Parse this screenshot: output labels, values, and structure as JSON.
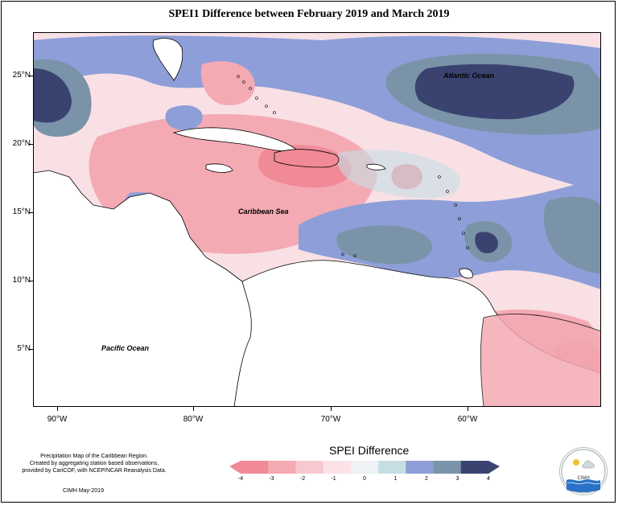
{
  "title": "SPEI1 Difference between February 2019 and March 2019",
  "map": {
    "lat_ticks": [
      "25°N",
      "20°N",
      "15°N",
      "10°N",
      "5°N"
    ],
    "lon_ticks": [
      "90°W",
      "80°W",
      "70°W",
      "60°W"
    ],
    "labels": {
      "atlantic": "Atlantic Ocean",
      "caribbean": "Caribbean Sea",
      "pacific": "Pacific Ocean"
    }
  },
  "legend": {
    "title": "SPEI Difference",
    "ticks": [
      "-4",
      "-3",
      "-2",
      "-1",
      "0",
      "1",
      "2",
      "3",
      "4"
    ],
    "colors": [
      "#f08a96",
      "#f4aab3",
      "#f8c8cf",
      "#fce2e7",
      "#eef2f4",
      "#c6dde4",
      "#8e9ed8",
      "#7a93a8",
      "#3a4370"
    ]
  },
  "notes": {
    "line1": "Precipitation Map of the Caribbean Region.",
    "line2": "Created by aggregating station based observations,",
    "line3": "provided by CariCOF, with NCEP/NCAR Reanalysis Data.",
    "credit": "CIMH May-2019"
  },
  "logo": {
    "text": "CIMH",
    "icon": "cimh-logo-icon"
  }
}
